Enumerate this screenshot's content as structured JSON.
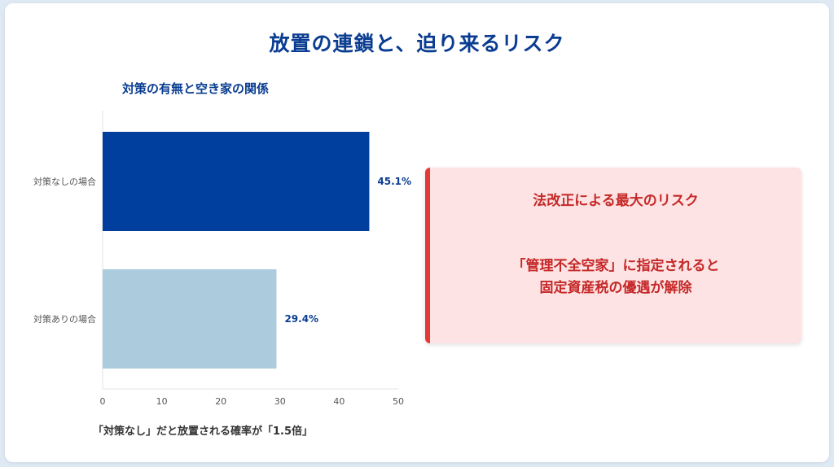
{
  "main_title": "放置の連鎖と、迫り来るリスク",
  "colors": {
    "title": "#0a3d91",
    "bar_primary": "#003f9e",
    "bar_secondary": "#acccde",
    "risk_accent": "#e53935",
    "risk_bg": "#fde3e3",
    "risk_text": "#c62828"
  },
  "chart_data": {
    "type": "bar",
    "orientation": "horizontal",
    "title": "対策の有無と空き家の関係",
    "categories": [
      "対策なしの場合",
      "対策ありの場合"
    ],
    "values": [
      45.1,
      29.4
    ],
    "data_labels": [
      "45.1%",
      "29.4%"
    ],
    "xlim": [
      0,
      50
    ],
    "x_ticks": [
      0,
      10,
      20,
      30,
      40,
      50
    ],
    "grid": false,
    "caption": "「対策なし」だと放置される確率が「1.5倍」"
  },
  "risk_box": {
    "title": "法改正による最大のリスク",
    "line1": "「管理不全空家」に指定されると",
    "line2": "固定資産税の優遇が解除"
  }
}
